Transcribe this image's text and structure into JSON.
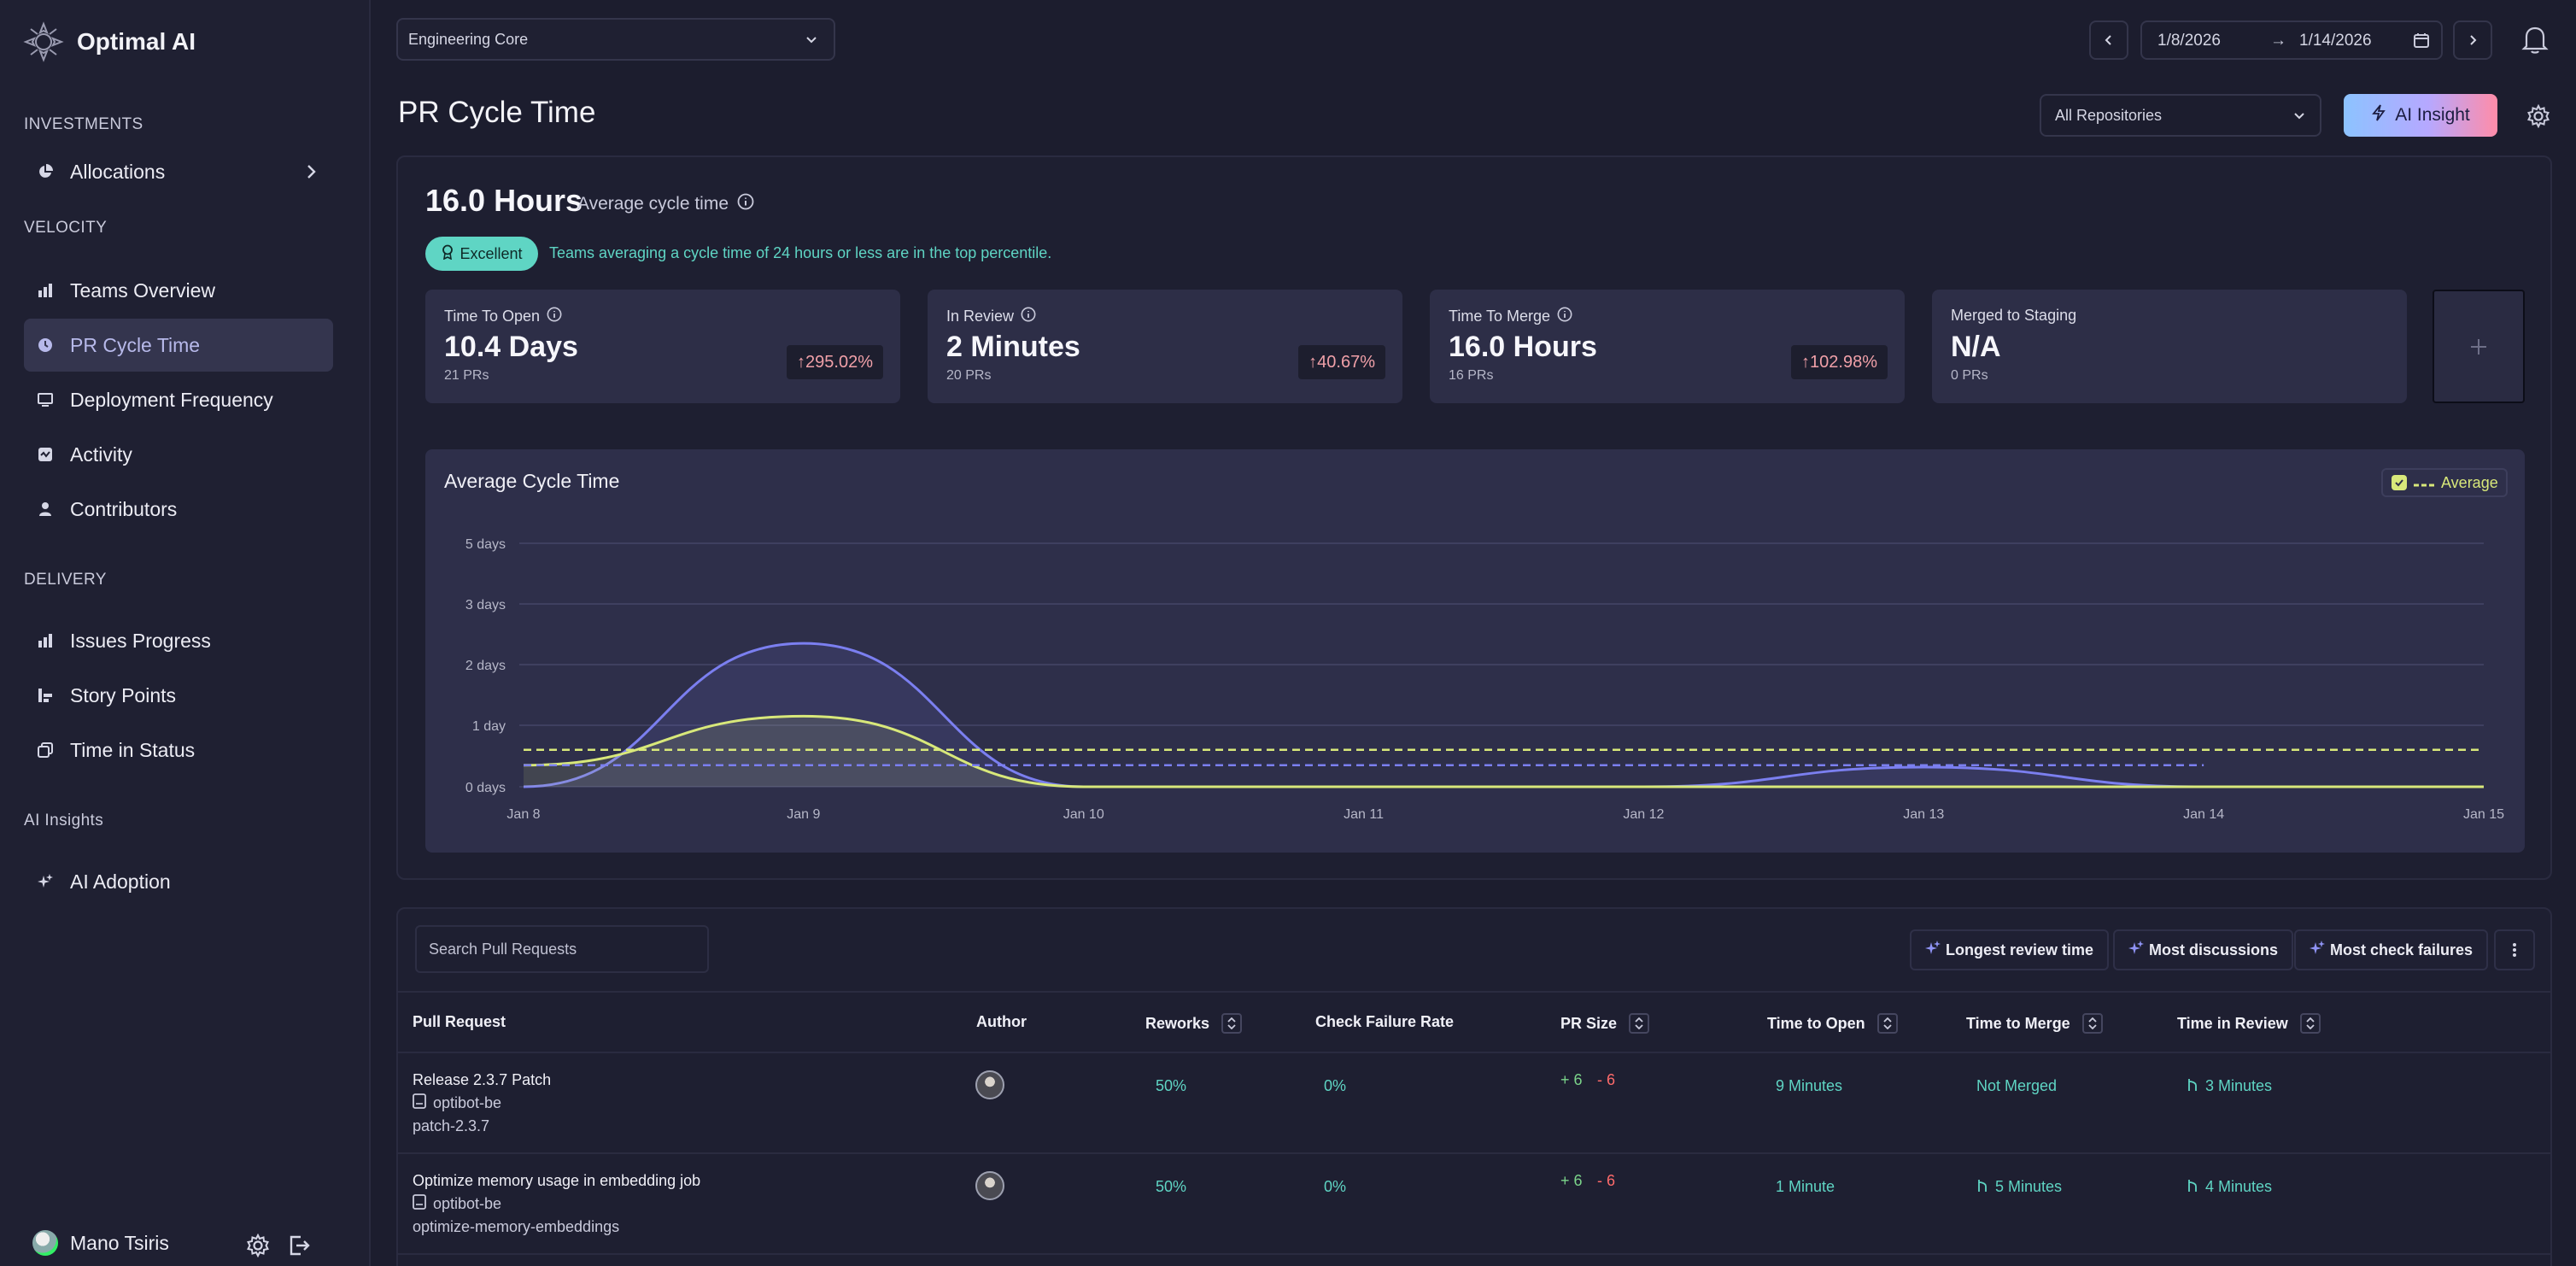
{
  "app": {
    "name": "Optimal AI"
  },
  "sidebar": {
    "sections": [
      {
        "label": "INVESTMENTS"
      },
      {
        "label": "VELOCITY"
      },
      {
        "label": "DELIVERY"
      },
      {
        "label": "AI Insights"
      }
    ],
    "items": [
      {
        "label": "Allocations",
        "icon": "pie-chart-icon"
      },
      {
        "label": "Teams Overview",
        "icon": "bar-chart-icon"
      },
      {
        "label": "PR Cycle Time",
        "icon": "clock-icon",
        "active": true
      },
      {
        "label": "Deployment Frequency",
        "icon": "monitor-icon"
      },
      {
        "label": "Activity",
        "icon": "activity-icon"
      },
      {
        "label": "Contributors",
        "icon": "person-icon"
      },
      {
        "label": "Issues Progress",
        "icon": "bar-chart-icon"
      },
      {
        "label": "Story Points",
        "icon": "story-points-icon"
      },
      {
        "label": "Time in Status",
        "icon": "copy-icon"
      },
      {
        "label": "AI Adoption",
        "icon": "sparkle-icon"
      }
    ],
    "user": {
      "name": "Mano Tsiris"
    }
  },
  "topbar": {
    "team": "Engineering Core",
    "date_start": "1/8/2026",
    "date_arrow": "→",
    "date_end": "1/14/2026"
  },
  "page": {
    "title": "PR Cycle Time",
    "repo_filter": "All Repositories",
    "ai_insight_label": "AI Insight"
  },
  "summary": {
    "value": "16.0 Hours",
    "label": "Average cycle time",
    "badge": "Excellent",
    "note": "Teams averaging a cycle time of 24 hours or less are in the top percentile."
  },
  "metrics": [
    {
      "label": "Time To Open",
      "value": "10.4 Days",
      "sub": "21 PRs",
      "delta": "295.02%",
      "has_info": true
    },
    {
      "label": "In Review",
      "value": "2 Minutes",
      "sub": "20 PRs",
      "delta": "40.67%",
      "has_info": true
    },
    {
      "label": "Time To Merge",
      "value": "16.0 Hours",
      "sub": "16 PRs",
      "delta": "102.98%",
      "has_info": true
    },
    {
      "label": "Merged to Staging",
      "value": "N/A",
      "sub": "0 PRs",
      "delta": null,
      "has_info": false
    }
  ],
  "chart_data": {
    "type": "area",
    "title": "Average Cycle Time",
    "legend": {
      "label": "Average",
      "placement": "top-right"
    },
    "categories": [
      "Jan 8",
      "Jan 9",
      "Jan 10",
      "Jan 11",
      "Jan 12",
      "Jan 13",
      "Jan 14",
      "Jan 15"
    ],
    "y_ticks": [
      "0 days",
      "1 day",
      "2 days",
      "3 days",
      "5 days"
    ],
    "y_tick_values": [
      0,
      1,
      2,
      3,
      5
    ],
    "grid": true,
    "series": [
      {
        "color": "#7b7ff0",
        "fill": true,
        "values": [
          0,
          2.35,
          0,
          0,
          0,
          0.32,
          0,
          0
        ]
      },
      {
        "color": "#d8e87a",
        "fill": true,
        "values": [
          0.35,
          1.15,
          0,
          0,
          0,
          0,
          0,
          0
        ]
      }
    ],
    "average_lines": [
      {
        "color": "#d8e87a",
        "value": 0.6,
        "style": "dashed"
      },
      {
        "color": "#7b7ff0",
        "value": 0.35,
        "style": "dashed"
      }
    ]
  },
  "table": {
    "search_placeholder": "Search Pull Requests",
    "filters": [
      {
        "label": "Longest review time"
      },
      {
        "label": "Most discussions"
      },
      {
        "label": "Most check failures"
      }
    ],
    "columns": [
      "Pull Request",
      "Author",
      "Reworks",
      "Check Failure Rate",
      "PR Size",
      "Time to Open",
      "Time to Merge",
      "Time in Review"
    ],
    "rows": [
      {
        "title": "Release 2.3.7 Patch",
        "repo": "optibot-be",
        "branch": "patch-2.3.7",
        "reworks": "50%",
        "check_failure": "0%",
        "size_add": "+ 6",
        "size_del": "- 6",
        "time_open": "9 Minutes",
        "time_merge": "Not Merged",
        "time_review": "3 Minutes"
      },
      {
        "title": "Optimize memory usage in embedding job",
        "repo": "optibot-be",
        "branch": "optimize-memory-embeddings",
        "reworks": "50%",
        "check_failure": "0%",
        "size_add": "+ 6",
        "size_del": "- 6",
        "time_open": "1 Minute",
        "time_merge": "5 Minutes",
        "time_review": "4 Minutes"
      }
    ]
  },
  "colors": {
    "accent": "#7b7ff0",
    "teal": "#5fd5c4",
    "lime": "#d8e87a",
    "danger": "#f0a0a8"
  }
}
